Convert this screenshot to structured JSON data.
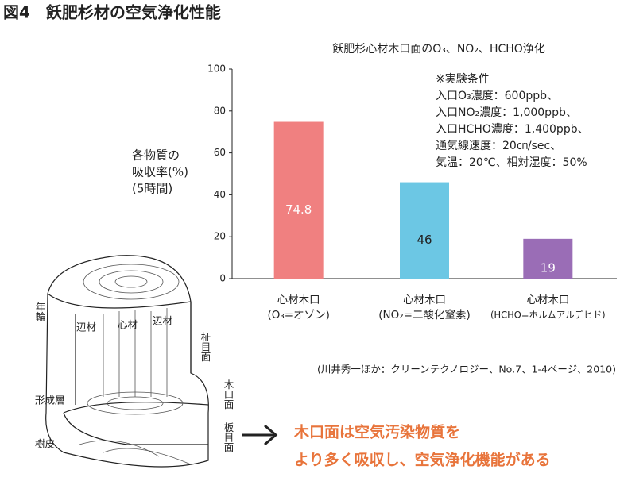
{
  "chart_data": {
    "type": "bar",
    "figure_title": "図4　飫肥杉材の空気浄化性能",
    "title": "飫肥杉心材木口面のO₃、NO₂、HCHO浄化",
    "ylabel": [
      "各物質の",
      "吸収率(%)",
      "(5時間)"
    ],
    "categories": [
      [
        "心材木口",
        "(O₃=オゾン)"
      ],
      [
        "心材木口",
        "(NO₂=二酸化窒素)"
      ],
      [
        "心材木口",
        "(HCHO=ホルムアルデヒド)"
      ]
    ],
    "values": [
      74.8,
      46,
      19
    ],
    "colors": [
      "#f08080",
      "#6cc7e4",
      "#9a6db6"
    ],
    "ylim": [
      0,
      100
    ],
    "yticks": [
      0,
      20,
      40,
      60,
      80,
      100
    ],
    "grid": false,
    "note": [
      "※実験条件",
      "入口O₃濃度：600ppb、",
      "入口NO₂濃度：1,000ppb、",
      "入口HCHO濃度：1,400ppb、",
      "通気線速度：20㎝/sec、",
      "気温：20℃、相対湿度：50%"
    ],
    "source": "(川井秀一ほか：クリーンテクノロジー、No.7、1-4ページ、2010)"
  },
  "diagram": {
    "labels": [
      "年輪",
      "辺材",
      "心材",
      "辺材",
      "柾目面",
      "木口面",
      "形成層",
      "板目面",
      "樹皮"
    ],
    "conclusion": [
      "木口面は空気汚染物質を",
      "より多く吸収し、空気浄化機能がある"
    ]
  }
}
